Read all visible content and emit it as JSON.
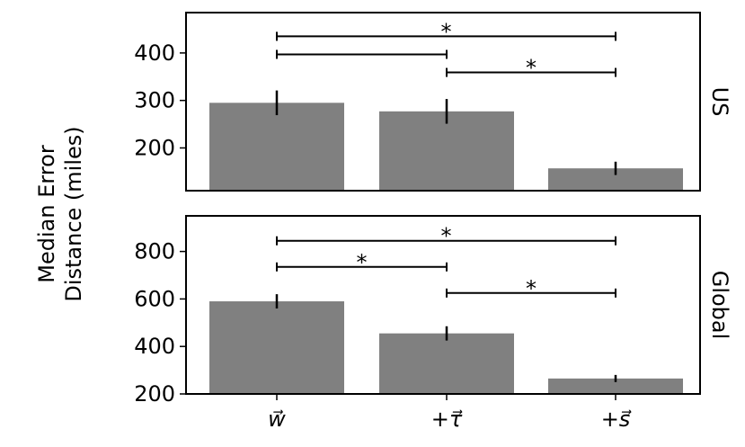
{
  "chart_data": {
    "type": "bar",
    "ylabel": [
      "Median Error",
      "Distance (miles)"
    ],
    "categories": [
      "w⃗",
      "+τ⃗",
      "+s⃗"
    ],
    "panels": [
      {
        "facet": "US",
        "ylim": [
          110,
          485
        ],
        "yticks": [
          200,
          300,
          400
        ],
        "values": [
          295,
          277,
          157
        ],
        "errors": [
          26,
          26,
          14
        ],
        "significance": [
          {
            "from": 0,
            "to": 2,
            "label": "*",
            "y": 435
          },
          {
            "from": 0,
            "to": 1,
            "label": "",
            "y": 397
          },
          {
            "from": 1,
            "to": 2,
            "label": "*",
            "y": 359
          }
        ]
      },
      {
        "facet": "Global",
        "ylim": [
          200,
          950
        ],
        "yticks": [
          200,
          400,
          600,
          800
        ],
        "values": [
          590,
          455,
          265
        ],
        "errors": [
          30,
          30,
          15
        ],
        "significance": [
          {
            "from": 0,
            "to": 2,
            "label": "*",
            "y": 845
          },
          {
            "from": 0,
            "to": 1,
            "label": "*",
            "y": 735
          },
          {
            "from": 1,
            "to": 2,
            "label": "*",
            "y": 625
          }
        ]
      }
    ],
    "bar_color": "#808080",
    "grid": false
  }
}
